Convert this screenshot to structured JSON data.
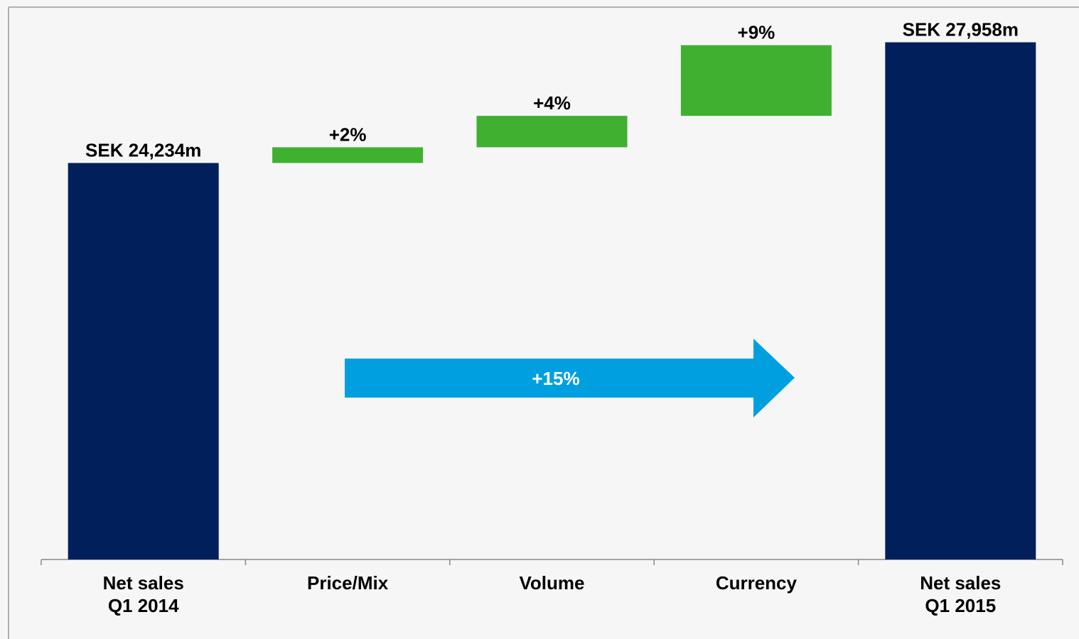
{
  "chart_data": {
    "type": "waterfall",
    "categories": [
      "Net sales\nQ1 2014",
      "Price/Mix",
      "Volume",
      "Currency",
      "Net sales\nQ1 2015"
    ],
    "measure": [
      "total",
      "relative",
      "relative",
      "relative",
      "total"
    ],
    "values": [
      24234,
      2,
      4,
      9,
      27958
    ],
    "value_labels": [
      "SEK 24,234m",
      "+2%",
      "+4%",
      "+9%",
      "SEK 27,958m"
    ],
    "total_color": "#001f5b",
    "increase_color": "#3fb02f",
    "ylim": [
      12000,
      29000
    ],
    "arrow": {
      "value": 15,
      "value_label": "+15%",
      "color": "#00a0e0"
    }
  }
}
